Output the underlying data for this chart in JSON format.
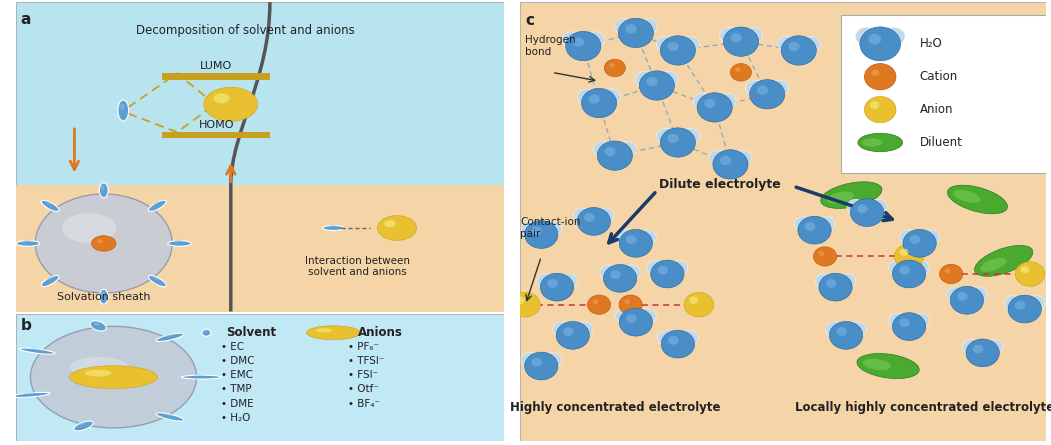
{
  "bg_light_blue": "#B8E4F0",
  "bg_peach": "#F5D5A8",
  "bg_b_blue": "#C0E8F5",
  "color_solvent": "#5B9FD4",
  "color_anion": "#E8C030",
  "color_cation": "#E07820",
  "color_diluent": "#4AAA30",
  "color_water_big": "#4A8EC8",
  "color_water_small": "#C0D8E8",
  "color_solvation": "#C0C8D5",
  "label_a": "a",
  "label_b": "b",
  "label_c": "c",
  "title_a": "Decomposition of solvent and anions",
  "lumo_label": "LUMO",
  "homo_label": "HOMO",
  "solvation_label": "Solvation sheath",
  "interaction_label": "Interaction between\nsolvent and anions",
  "solvent_header": "Solvent",
  "anion_header": "Anions",
  "solvent_list": [
    "EC",
    "DMC",
    "EMC",
    "TMP",
    "DME",
    "H₂O"
  ],
  "anion_list": [
    "PF₆⁻",
    "TFSI⁻",
    "FSI⁻",
    "Otf⁻",
    "BF₄⁻"
  ],
  "dilute_label": "Dilute electrolyte",
  "hce_label": "Highly concentrated electrolyte",
  "lhce_label": "Locally highly concentrated electrolyte",
  "hydrogen_bond_label": "Hydrogen\nbond",
  "contact_ion_label": "Contact-ion\npair",
  "legend_h2o": "H₂O",
  "legend_cation": "Cation",
  "legend_anion": "Anion",
  "legend_diluent": "Diluent"
}
